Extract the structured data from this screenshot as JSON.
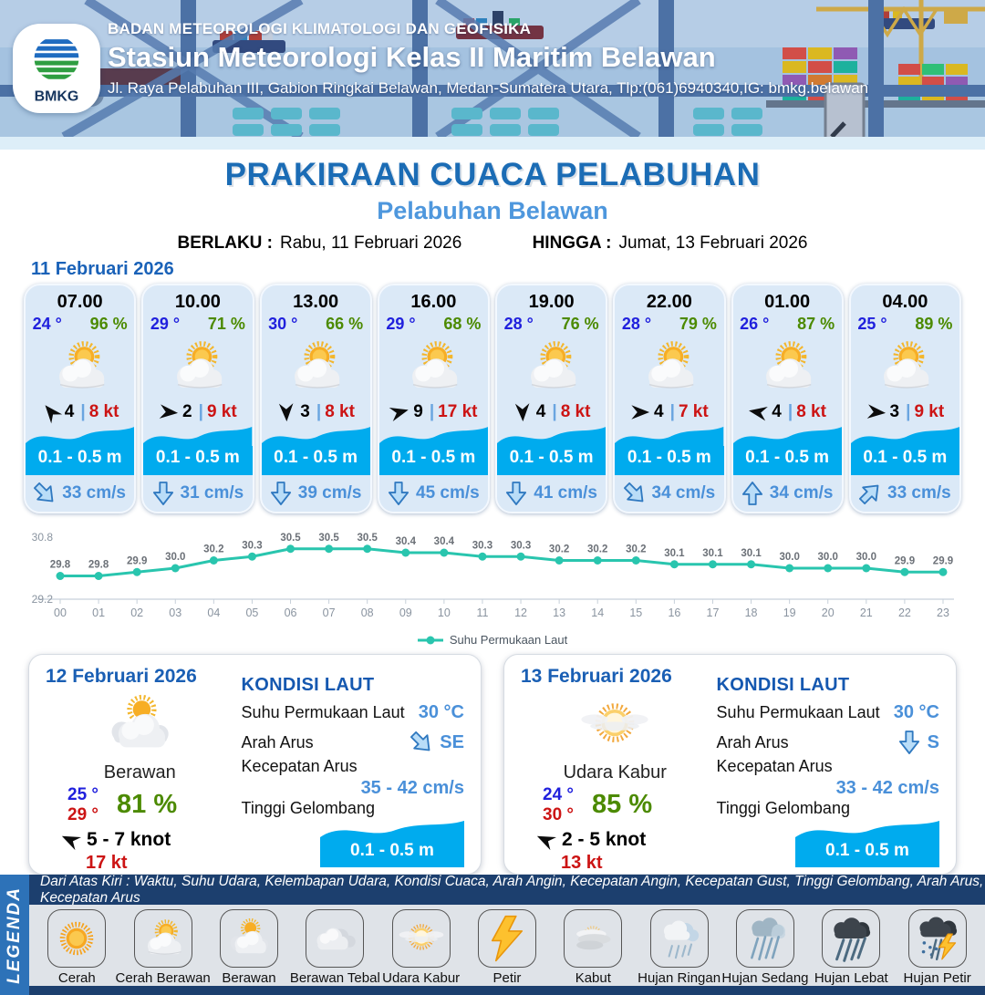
{
  "header": {
    "agency": "BADAN METEOROLOGI KLIMATOLOGI DAN GEOFISIKA",
    "station": "Stasiun Meteorologi Kelas II Maritim Belawan",
    "address": "Jl. Raya Pelabuhan III, Gabion Ringkai Belawan, Medan-Sumatera Utara, Tlp:(061)6940340,IG: bmkg.belawan",
    "logo_text": "BMKG"
  },
  "title": {
    "main": "PRAKIRAAN CUACA PELABUHAN",
    "subtitle": "Pelabuhan Belawan",
    "berlaku_label": "BERLAKU :",
    "berlaku_value": "Rabu, 11 Februari 2026",
    "hingga_label": "HINGGA :",
    "hingga_value": "Jumat, 13 Februari 2026"
  },
  "forecast_date": "11 Februari 2026",
  "ui": {
    "sep": "|"
  },
  "cards": [
    {
      "time": "07.00",
      "temp": "24 °",
      "humidity": "96 %",
      "weather_icon": "cerah-berawan",
      "wind_deg": 230,
      "wind_val": "4",
      "wind_speed": "8 kt",
      "wave": "0.1 - 0.5 m",
      "current_deg": -45,
      "current": "33 cm/s"
    },
    {
      "time": "10.00",
      "temp": "29 °",
      "humidity": "71 %",
      "weather_icon": "cerah-berawan",
      "wind_deg": 5,
      "wind_val": "2",
      "wind_speed": "9 kt",
      "wave": "0.1 - 0.5 m",
      "current_deg": 0,
      "current": "31 cm/s"
    },
    {
      "time": "13.00",
      "temp": "30 °",
      "humidity": "66 %",
      "weather_icon": "cerah-berawan",
      "wind_deg": 88,
      "wind_val": "3",
      "wind_speed": "8 kt",
      "wave": "0.1 - 0.5 m",
      "current_deg": 0,
      "current": "39 cm/s"
    },
    {
      "time": "16.00",
      "temp": "29 °",
      "humidity": "68 %",
      "weather_icon": "cerah-berawan",
      "wind_deg": -15,
      "wind_val": "9",
      "wind_speed": "17 kt",
      "wave": "0.1 - 0.5 m",
      "current_deg": 0,
      "current": "45 cm/s"
    },
    {
      "time": "19.00",
      "temp": "28 °",
      "humidity": "76 %",
      "weather_icon": "cerah-berawan",
      "wind_deg": 88,
      "wind_val": "4",
      "wind_speed": "8 kt",
      "wave": "0.1 - 0.5 m",
      "current_deg": 0,
      "current": "41 cm/s"
    },
    {
      "time": "22.00",
      "temp": "28 °",
      "humidity": "79 %",
      "weather_icon": "cerah-berawan",
      "wind_deg": 0,
      "wind_val": "4",
      "wind_speed": "7 kt",
      "wave": "0.1 - 0.5 m",
      "current_deg": -45,
      "current": "34 cm/s"
    },
    {
      "time": "01.00",
      "temp": "26 °",
      "humidity": "87 %",
      "weather_icon": "cerah-berawan",
      "wind_deg": 190,
      "wind_val": "4",
      "wind_speed": "8 kt",
      "wave": "0.1 - 0.5 m",
      "current_deg": 180,
      "current": "34 cm/s"
    },
    {
      "time": "04.00",
      "temp": "25 °",
      "humidity": "89 %",
      "weather_icon": "cerah-berawan",
      "wind_deg": 5,
      "wind_val": "3",
      "wind_speed": "9 kt",
      "wave": "0.1 - 0.5 m",
      "current_deg": -135,
      "current": "33 cm/s"
    }
  ],
  "chart_data": {
    "type": "line",
    "x": [
      "00",
      "01",
      "02",
      "03",
      "04",
      "05",
      "06",
      "07",
      "08",
      "09",
      "10",
      "11",
      "12",
      "13",
      "14",
      "15",
      "16",
      "17",
      "18",
      "19",
      "20",
      "21",
      "22",
      "23"
    ],
    "series": [
      {
        "name": "Suhu Permukaan Laut",
        "values": [
          29.8,
          29.8,
          29.9,
          30.0,
          30.2,
          30.3,
          30.5,
          30.5,
          30.5,
          30.4,
          30.4,
          30.3,
          30.3,
          30.2,
          30.2,
          30.2,
          30.1,
          30.1,
          30.1,
          30.0,
          30.0,
          30.0,
          29.9,
          29.9
        ]
      }
    ],
    "ylim": [
      29.2,
      30.8
    ],
    "yticks": [
      "30.8",
      "29.2"
    ],
    "line_color": "#29c5ae",
    "legend_position": "bottom",
    "title": "",
    "xlabel": "",
    "ylabel": ""
  },
  "daily": [
    {
      "date": "12 Februari 2026",
      "weather_icon": "berawan",
      "weather_label": "Berawan",
      "temp_min": "25 °",
      "temp_max": "29 °",
      "humidity": "81 %",
      "wind_deg": 205,
      "wind_range": "5 - 7 knot",
      "gust": "17 kt",
      "sea": {
        "heading": "KONDISI LAUT",
        "sst_label": "Suhu Permukaan Laut",
        "sst": "30 °C",
        "current_dir_label": "Arah Arus",
        "current_dir": "SE",
        "current_deg": -45,
        "current_speed_label": "Kecepatan Arus",
        "current_speed": "35 - 42 cm/s",
        "wave_label": "Tinggi Gelombang",
        "wave": "0.1 - 0.5 m"
      }
    },
    {
      "date": "13 Februari 2026",
      "weather_icon": "udara-kabur",
      "weather_label": "Udara Kabur",
      "temp_min": "24 °",
      "temp_max": "30 °",
      "humidity": "85 %",
      "wind_deg": 205,
      "wind_range": "2 - 5 knot",
      "gust": "13 kt",
      "sea": {
        "heading": "KONDISI LAUT",
        "sst_label": "Suhu Permukaan Laut",
        "sst": "30 °C",
        "current_dir_label": "Arah Arus",
        "current_dir": "S",
        "current_deg": 0,
        "current_speed_label": "Kecepatan Arus",
        "current_speed": "33 - 42 cm/s",
        "wave_label": "Tinggi Gelombang",
        "wave": "0.1 - 0.5 m"
      }
    }
  ],
  "legend": {
    "vertical_label": "LEGENDA",
    "caption": "Dari Atas Kiri : Waktu, Suhu Udara, Kelembapan Udara, Kondisi Cuaca, Arah Angin, Kecepatan Angin, Kecepatan Gust, Tinggi Gelombang, Arah Arus, Kecepatan Arus",
    "items": [
      {
        "icon": "cerah",
        "label": "Cerah"
      },
      {
        "icon": "cerah-berawan",
        "label": "Cerah Berawan"
      },
      {
        "icon": "berawan",
        "label": "Berawan"
      },
      {
        "icon": "berawan-tebal",
        "label": "Berawan Tebal"
      },
      {
        "icon": "udara-kabur",
        "label": "Udara Kabur"
      },
      {
        "icon": "petir",
        "label": "Petir"
      },
      {
        "icon": "kabut",
        "label": "Kabut"
      },
      {
        "icon": "hujan-ringan",
        "label": "Hujan Ringan"
      },
      {
        "icon": "hujan-sedang",
        "label": "Hujan Sedang"
      },
      {
        "icon": "hujan-lebat",
        "label": "Hujan Lebat"
      },
      {
        "icon": "hujan-petir",
        "label": "Hujan Petir"
      }
    ]
  },
  "colors": {
    "accent_blue": "#1b6cb5",
    "subtitle_blue": "#4e97dd",
    "temp_blue": "#2020dd",
    "humidity_green": "#4c8a00",
    "wind_red": "#cc1414",
    "wave_cyan": "#00abee",
    "current_blue": "#4a90d9",
    "chart_teal": "#29c5ae",
    "card_bg": "#dbe9f7",
    "footer_navy": "#1c3f6e",
    "legend_bar_blue": "#2d72b8"
  }
}
